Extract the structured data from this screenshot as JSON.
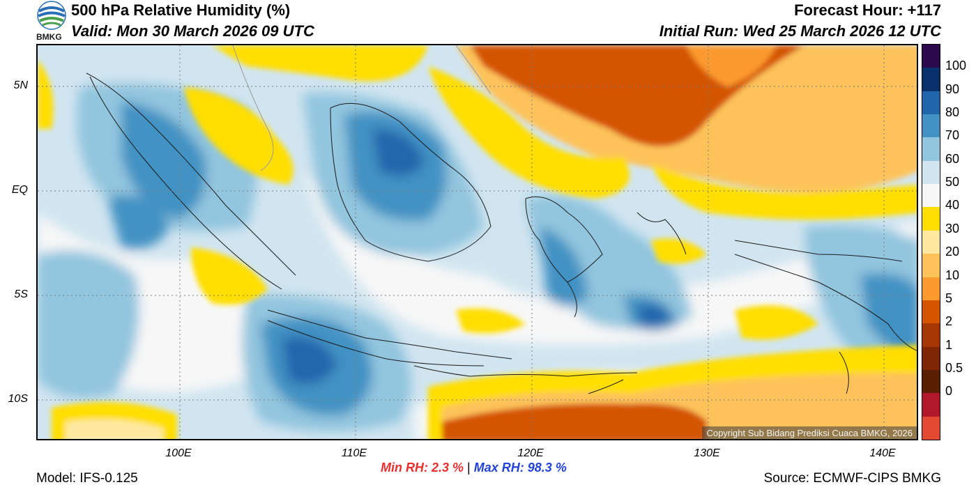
{
  "header": {
    "title": "500 hPa Relative Humidity (%)",
    "valid": "Valid: Mon 30 March 2026 09 UTC",
    "forecast_hour": "Forecast Hour: +117",
    "initial_run": "Initial Run: Wed 25 March 2026 12 UTC",
    "logo_text": "BMKG"
  },
  "axes": {
    "lat_labels": [
      "5N",
      "EQ",
      "5S",
      "10S"
    ],
    "lon_labels": [
      "100E",
      "110E",
      "120E",
      "130E",
      "140E"
    ]
  },
  "colorbar": {
    "labels": [
      "100",
      "90",
      "80",
      "70",
      "60",
      "50",
      "40",
      "30",
      "20",
      "10",
      "5",
      "2",
      "1",
      "0.5",
      "0"
    ],
    "colors": [
      "#2d0a4e",
      "#08306b",
      "#2166ac",
      "#4392c3",
      "#92c5de",
      "#d1e5f0",
      "#f7f7f7",
      "#ffde00",
      "#ffe9a0",
      "#fdc35a",
      "#fb9a2f",
      "#d45400",
      "#a63603",
      "#7f2704",
      "#5a1e02",
      "#b2182b",
      "#e34a33"
    ]
  },
  "stats": {
    "min_label": "Min RH:",
    "min_value": "2.3 %",
    "separator": "|",
    "max_label": "Max RH:",
    "max_value": "98.3 %"
  },
  "footer": {
    "model": "Model: IFS-0.125",
    "source": "Source: ECMWF-CIPS BMKG",
    "copyright": "Copyright Sub Bidang Prediksi Cuaca BMKG, 2026"
  }
}
